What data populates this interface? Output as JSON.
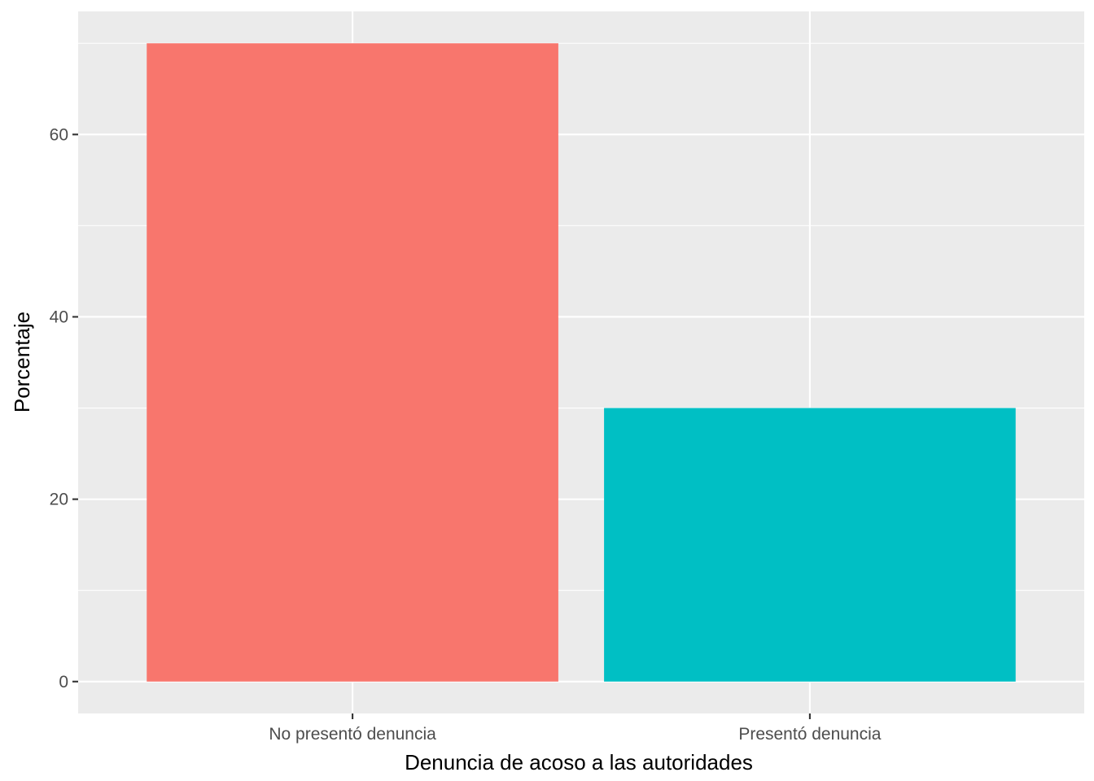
{
  "chart_data": {
    "type": "bar",
    "categories": [
      "No presentó denuncia",
      "Presentó denuncia"
    ],
    "values": [
      70,
      30
    ],
    "colors": [
      "#F8766D",
      "#00BFC4"
    ],
    "xlabel": "Denuncia de acoso a las autoridades",
    "ylabel": "Porcentaje",
    "yticks": [
      0,
      20,
      40,
      60
    ],
    "ylim": [
      -3.5,
      73.5
    ],
    "grid": true,
    "legend": "none"
  }
}
